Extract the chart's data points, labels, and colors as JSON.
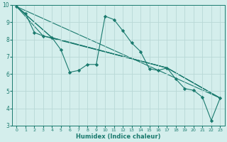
{
  "title": "",
  "xlabel": "Humidex (Indice chaleur)",
  "ylabel": "",
  "background_color": "#d4eeec",
  "grid_color": "#b8d8d6",
  "line_color": "#1a7a6e",
  "xlim": [
    -0.5,
    23.5
  ],
  "ylim": [
    3,
    10
  ],
  "yticks": [
    3,
    4,
    5,
    6,
    7,
    8,
    9,
    10
  ],
  "xticks": [
    0,
    1,
    2,
    3,
    4,
    5,
    6,
    7,
    8,
    9,
    10,
    11,
    12,
    13,
    14,
    15,
    16,
    17,
    18,
    19,
    20,
    21,
    22,
    23
  ],
  "main_line": {
    "x": [
      0,
      1,
      2,
      3,
      4,
      5,
      6,
      7,
      8,
      9,
      10,
      11,
      12,
      13,
      14,
      15,
      16,
      17,
      18,
      19,
      20,
      21,
      22,
      23
    ],
    "y": [
      9.9,
      9.5,
      8.4,
      8.2,
      8.1,
      7.4,
      6.1,
      6.2,
      6.55,
      6.55,
      9.35,
      9.15,
      8.5,
      7.8,
      7.3,
      6.3,
      6.2,
      6.35,
      5.7,
      5.15,
      5.05,
      4.65,
      3.3,
      4.6
    ]
  },
  "trend_lines": [
    {
      "x": [
        0,
        23
      ],
      "y": [
        9.9,
        4.6
      ]
    },
    {
      "x": [
        0,
        4,
        17,
        23
      ],
      "y": [
        9.9,
        8.1,
        6.35,
        4.6
      ]
    },
    {
      "x": [
        0,
        4,
        17,
        23
      ],
      "y": [
        9.9,
        8.1,
        6.35,
        4.6
      ]
    },
    {
      "x": [
        0,
        3,
        17,
        23
      ],
      "y": [
        9.9,
        8.2,
        6.35,
        4.6
      ]
    }
  ]
}
